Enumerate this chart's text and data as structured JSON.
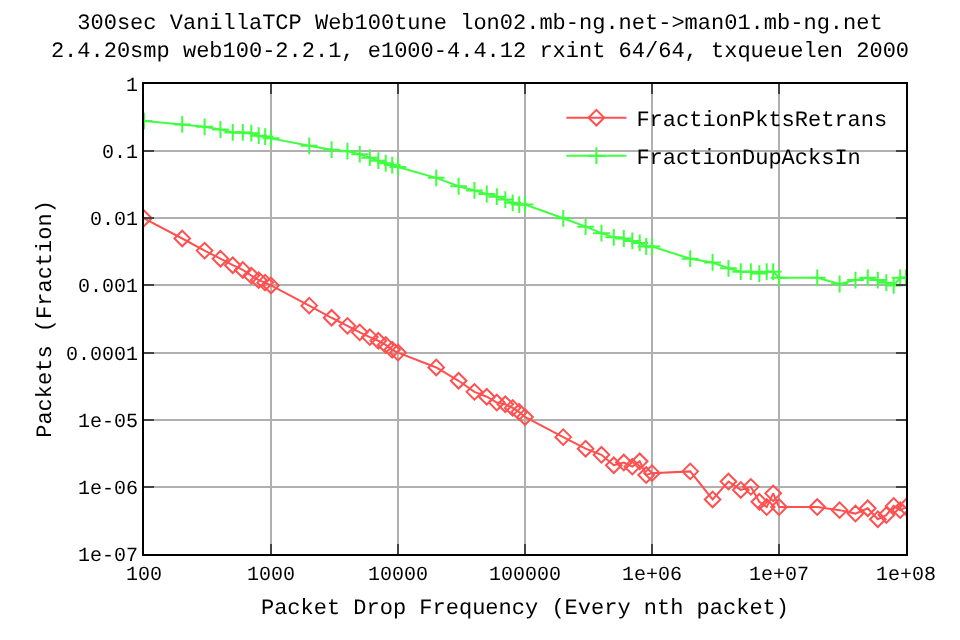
{
  "chart_data": {
    "type": "line",
    "title": "300sec VanillaTCP Web100tune lon02.mb-ng.net->man01.mb-ng.net\n2.4.20smp web100-2.2.1, e1000-4.4.12 rxint 64/64, txqueuelen 2000",
    "xlabel": "Packet Drop Frequency (Every nth packet)",
    "ylabel": "Packets (Fraction)",
    "log": "xy",
    "grid": true,
    "legend": "top right",
    "xlim": [
      100,
      100000000
    ],
    "ylim": [
      1e-07,
      1
    ],
    "xticks": [
      100,
      1000,
      10000,
      100000,
      {
        "value": 1000000,
        "label": "1e+06"
      },
      {
        "value": 10000000,
        "label": "1e+07"
      },
      {
        "value": 100000000,
        "label": "1e+08"
      }
    ],
    "yticks": [
      {
        "value": 1e-07,
        "label": "1e-07"
      },
      {
        "value": 1e-06,
        "label": "1e-06"
      },
      {
        "value": 1e-05,
        "label": "1e-05"
      },
      0.0001,
      0.001,
      0.01,
      0.1,
      1
    ],
    "x": [
      100,
      200,
      300,
      400,
      500,
      600,
      700,
      800,
      900,
      1000,
      2000,
      3000,
      4000,
      5000,
      6000,
      7000,
      8000,
      9000,
      10000,
      20000,
      30000,
      40000,
      50000,
      60000,
      70000,
      80000,
      90000,
      100000,
      200000,
      300000,
      400000,
      500000,
      600000,
      700000,
      800000,
      900000,
      1000000,
      2000000,
      3000000,
      4000000,
      5000000,
      6000000,
      7000000,
      8000000,
      9000000,
      10000000,
      20000000,
      30000000,
      40000000,
      50000000,
      60000000,
      70000000,
      80000000,
      90000000,
      100000000
    ],
    "series": [
      {
        "name": "FractionPktsRetrans",
        "color": "#ff5050",
        "marker": "diamond",
        "values": [
          0.01,
          0.005,
          0.0033,
          0.0025,
          0.002,
          0.0017,
          0.0014,
          0.0012,
          0.0011,
          0.001,
          0.0005,
          0.00033,
          0.00025,
          0.0002,
          0.00017,
          0.00015,
          0.00013,
          0.00011,
          0.0001,
          6e-05,
          3.8e-05,
          2.6e-05,
          2.2e-05,
          1.8e-05,
          1.7e-05,
          1.5e-05,
          1.3e-05,
          1.1e-05,
          5.5e-06,
          3.7e-06,
          3e-06,
          2.1e-06,
          2.3e-06,
          2e-06,
          2.4e-06,
          1.5e-06,
          1.6e-06,
          1.7e-06,
          6.5e-07,
          1.2e-06,
          9e-07,
          1e-06,
          6e-07,
          5e-07,
          8e-07,
          5e-07,
          5e-07,
          4.5e-07,
          4e-07,
          4.8e-07,
          3.3e-07,
          3.8e-07,
          5.2e-07,
          4.5e-07,
          5e-07
        ]
      },
      {
        "name": "FractionDupAcksIn",
        "color": "#40ff40",
        "marker": "cross",
        "values": [
          0.28,
          0.25,
          0.23,
          0.21,
          0.19,
          0.19,
          0.185,
          0.17,
          0.165,
          0.155,
          0.12,
          0.105,
          0.1,
          0.09,
          0.08,
          0.072,
          0.066,
          0.062,
          0.058,
          0.04,
          0.03,
          0.026,
          0.023,
          0.021,
          0.019,
          0.017,
          0.016,
          0.016,
          0.01,
          0.0075,
          0.006,
          0.0052,
          0.005,
          0.0046,
          0.0043,
          0.0038,
          0.0038,
          0.0025,
          0.0022,
          0.0018,
          0.0016,
          0.0016,
          0.0015,
          0.0016,
          0.0016,
          0.0013,
          0.0013,
          0.00105,
          0.0012,
          0.0013,
          0.0012,
          0.0011,
          0.001,
          0.0013,
          0.0013
        ]
      }
    ]
  }
}
